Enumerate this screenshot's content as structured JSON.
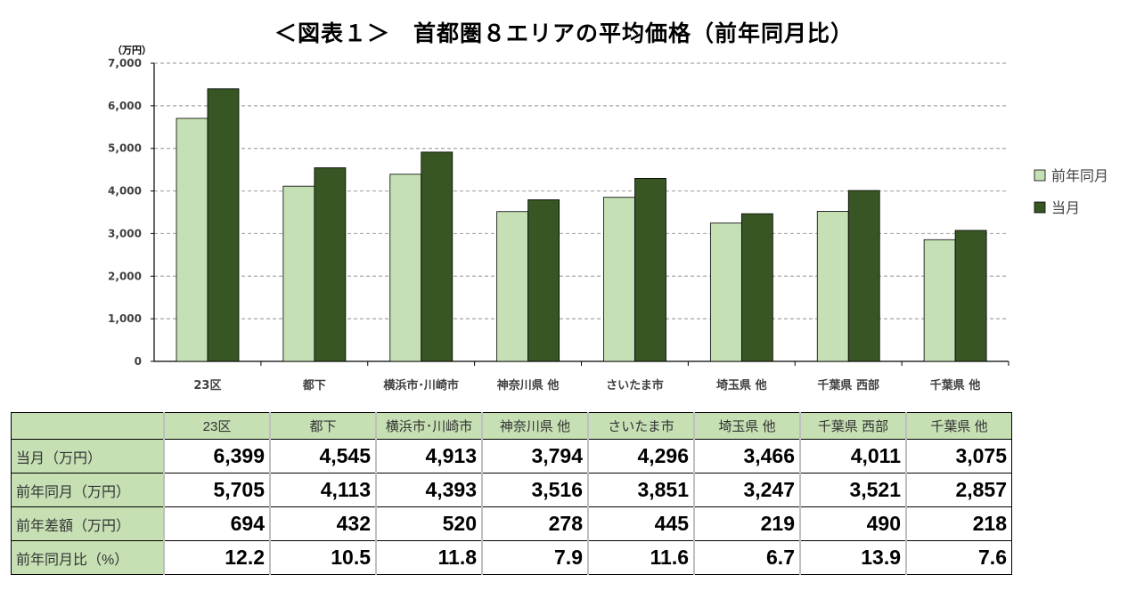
{
  "title": "＜図表１＞　首都圏８エリアの平均価格（前年同月比）",
  "chart_data": {
    "type": "bar",
    "title": "＜図表１＞　首都圏８エリアの平均価格（前年同月比）",
    "ylabel": "（万円）",
    "ylim": [
      0,
      7000
    ],
    "yticks": [
      "0",
      "1,000",
      "2,000",
      "3,000",
      "4,000",
      "5,000",
      "6,000",
      "7,000"
    ],
    "grid": true,
    "legend_position": "right",
    "categories": [
      "23区",
      "都下",
      "横浜市･川崎市",
      "神奈川県 他",
      "さいたま市",
      "埼玉県 他",
      "千葉県 西部",
      "千葉県 他"
    ],
    "series": [
      {
        "name": "前年同月",
        "color": "#c5e0b4",
        "values": [
          5705,
          4113,
          4393,
          3516,
          3851,
          3247,
          3521,
          2857
        ]
      },
      {
        "name": "当月",
        "color": "#375623",
        "values": [
          6399,
          4545,
          4913,
          3794,
          4296,
          3466,
          4011,
          3075
        ]
      }
    ]
  },
  "table": {
    "header": [
      "23区",
      "都下",
      "横浜市･川崎市",
      "神奈川県 他",
      "さいたま市",
      "埼玉県 他",
      "千葉県 西部",
      "千葉県 他"
    ],
    "rows": [
      {
        "label": "当月（万円）",
        "values": [
          "6,399",
          "4,545",
          "4,913",
          "3,794",
          "4,296",
          "3,466",
          "4,011",
          "3,075"
        ]
      },
      {
        "label": "前年同月（万円）",
        "values": [
          "5,705",
          "4,113",
          "4,393",
          "3,516",
          "3,851",
          "3,247",
          "3,521",
          "2,857"
        ]
      },
      {
        "label": "前年差額（万円）",
        "values": [
          "694",
          "432",
          "520",
          "278",
          "445",
          "219",
          "490",
          "218"
        ]
      },
      {
        "label": "前年同月比（%）",
        "values": [
          "12.2",
          "10.5",
          "11.8",
          "7.9",
          "11.6",
          "6.7",
          "13.9",
          "7.6"
        ]
      }
    ]
  }
}
